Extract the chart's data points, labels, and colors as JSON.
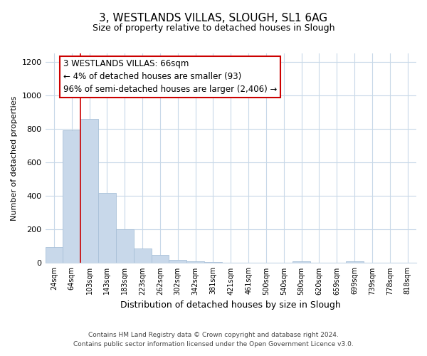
{
  "title": "3, WESTLANDS VILLAS, SLOUGH, SL1 6AG",
  "subtitle": "Size of property relative to detached houses in Slough",
  "xlabel": "Distribution of detached houses by size in Slough",
  "ylabel": "Number of detached properties",
  "categories": [
    "24sqm",
    "64sqm",
    "103sqm",
    "143sqm",
    "183sqm",
    "223sqm",
    "262sqm",
    "302sqm",
    "342sqm",
    "381sqm",
    "421sqm",
    "461sqm",
    "500sqm",
    "540sqm",
    "580sqm",
    "620sqm",
    "659sqm",
    "699sqm",
    "739sqm",
    "778sqm",
    "818sqm"
  ],
  "values": [
    95,
    790,
    860,
    420,
    200,
    85,
    50,
    20,
    10,
    5,
    2,
    1,
    0,
    0,
    10,
    0,
    0,
    10,
    0,
    0,
    0
  ],
  "bar_color": "#c8d8ea",
  "bar_edge_color": "#a8c0d8",
  "vline_color": "#cc0000",
  "annotation_text_line1": "3 WESTLANDS VILLAS: 66sqm",
  "annotation_text_line2": "← 4% of detached houses are smaller (93)",
  "annotation_text_line3": "96% of semi-detached houses are larger (2,406) →",
  "ylim": [
    0,
    1250
  ],
  "yticks": [
    0,
    200,
    400,
    600,
    800,
    1000,
    1200
  ],
  "footer_line1": "Contains HM Land Registry data © Crown copyright and database right 2024.",
  "footer_line2": "Contains public sector information licensed under the Open Government Licence v3.0.",
  "background_color": "#ffffff",
  "grid_color": "#c8d8e8",
  "title_fontsize": 11,
  "subtitle_fontsize": 9,
  "annotation_fontsize": 8.5,
  "ylabel_fontsize": 8,
  "xlabel_fontsize": 9,
  "footer_fontsize": 6.5
}
